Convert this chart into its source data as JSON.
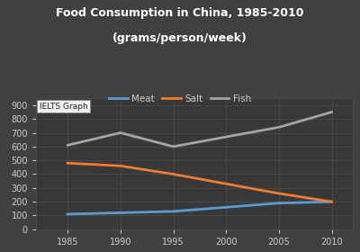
{
  "title_line1": "Food Consumption in China, 1985-2010",
  "title_line2": "(grams/person/week)",
  "years": [
    1985,
    1990,
    1995,
    2000,
    2005,
    2010
  ],
  "meat": [
    110,
    120,
    130,
    160,
    190,
    200
  ],
  "salt": [
    480,
    460,
    400,
    330,
    260,
    200
  ],
  "fish": [
    610,
    700,
    600,
    670,
    740,
    850
  ],
  "meat_color": "#5b9bd5",
  "salt_color": "#ed7d31",
  "fish_color": "#a5a5a5",
  "fig_bg_color": "#404040",
  "plot_bg_color": "#383838",
  "title_color": "#ffffff",
  "tick_color": "#cccccc",
  "grid_color": "#505050",
  "legend_labels": [
    "Meat",
    "Salt",
    "Fish"
  ],
  "watermark_text": "IELTS Graph",
  "watermark_bg": "#f0f0f0",
  "watermark_text_color": "#222222",
  "ylim": [
    0,
    950
  ],
  "yticks": [
    0,
    100,
    200,
    300,
    400,
    500,
    600,
    700,
    800,
    900
  ],
  "xticks": [
    1985,
    1990,
    1995,
    2000,
    2005,
    2010
  ],
  "xlim": [
    1982,
    2012
  ],
  "line_width": 2.0
}
